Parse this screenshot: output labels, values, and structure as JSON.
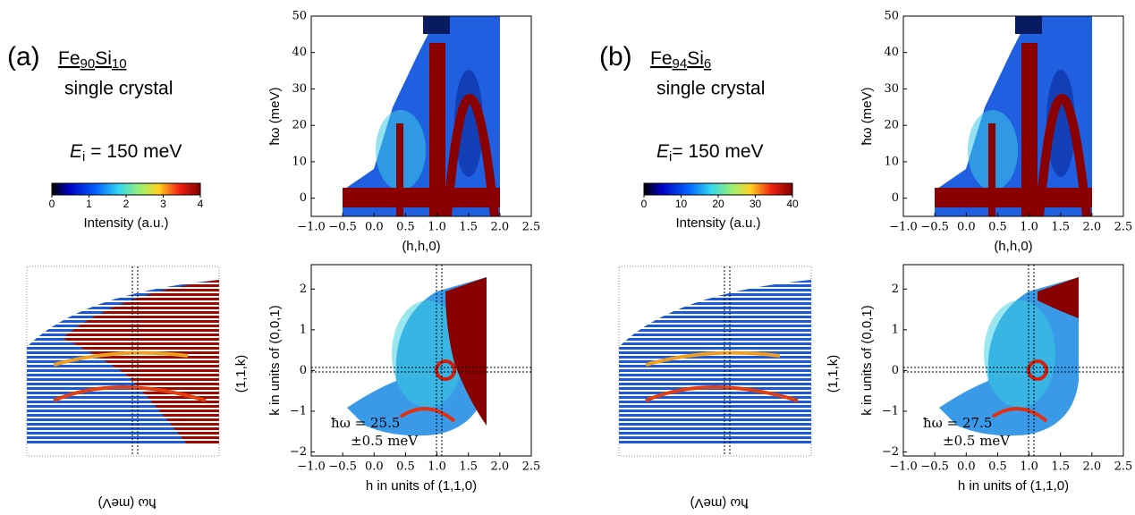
{
  "panels": [
    {
      "label": "(a)",
      "formula": {
        "el1": "Fe",
        "n1": "90",
        "el2": "Si",
        "n2": "10"
      },
      "sample": "single crystal",
      "energy": {
        "symbol": "E",
        "sub": "i",
        "rest": " = 150 meV"
      },
      "colorbar": {
        "lim": [
          0,
          4
        ],
        "ticks": [
          0,
          1,
          2,
          3,
          4
        ],
        "label": "Intensity (a.u.)"
      },
      "dispersion": {
        "ylabel": "ħω (meV)",
        "xlabel": "(h,h,0)",
        "xlim": [
          -1,
          2.5
        ],
        "xticks": [
          {
            "value": -1,
            "label": "−1.0"
          },
          {
            "value": -0.5,
            "label": "−0.5"
          },
          {
            "value": 0,
            "label": "0.0"
          },
          0.5,
          {
            "value": 1,
            "label": "1.0"
          },
          1.5,
          {
            "value": 2,
            "label": "2.0"
          },
          2.5
        ],
        "ylim": [
          -5,
          50
        ],
        "yticks": [
          0,
          10,
          20,
          30,
          40,
          50
        ]
      },
      "slice": {
        "ylabel": "k in units of (0,0,1)",
        "xlabel": "h in units of (1,1,0)",
        "xlim": [
          -1,
          2.5
        ],
        "xticks": [
          {
            "value": -1,
            "label": "−1.0"
          },
          {
            "value": -0.5,
            "label": "−0.5"
          },
          {
            "value": 0,
            "label": "0.0"
          },
          0.5,
          {
            "value": 1,
            "label": "1.0"
          },
          1.5,
          {
            "value": 2,
            "label": "2.0"
          },
          2.5
        ],
        "ylim": [
          -2.1,
          2.6
        ],
        "yticks": [
          {
            "value": -2,
            "label": "−2"
          },
          {
            "value": -1,
            "label": "−1"
          },
          0,
          1,
          2
        ],
        "annotation": [
          "ħω = 25.5",
          "±0.5 meV"
        ]
      },
      "cut": {
        "klabel": "(1,1,k)",
        "elabel": "ħω (meV)"
      }
    },
    {
      "label": "(b)",
      "formula": {
        "el1": "Fe",
        "n1": "94",
        "el2": "Si",
        "n2": "6"
      },
      "sample": "single crystal",
      "energy": {
        "symbol": "E",
        "sub": "i",
        "rest": "= 150 meV"
      },
      "colorbar": {
        "lim": [
          0,
          40
        ],
        "ticks": [
          0,
          10,
          20,
          30,
          40
        ],
        "label": "Intensity (a.u.)"
      },
      "dispersion": {
        "ylabel": "ħω (meV)",
        "xlabel": "(h,h,0)",
        "xlim": [
          -1,
          2.5
        ],
        "xticks": [
          {
            "value": -1,
            "label": "−1.0"
          },
          {
            "value": -0.5,
            "label": "−0.5"
          },
          {
            "value": 0,
            "label": "0.0"
          },
          0.5,
          {
            "value": 1,
            "label": "1.0"
          },
          1.5,
          {
            "value": 2,
            "label": "2.0"
          },
          2.5
        ],
        "ylim": [
          -5,
          50
        ],
        "yticks": [
          0,
          10,
          20,
          30,
          40,
          50
        ]
      },
      "slice": {
        "ylabel": "k in units of (0,0,1)",
        "xlabel": "h in units of (1,1,0)",
        "xlim": [
          -1,
          2.5
        ],
        "xticks": [
          {
            "value": -1,
            "label": "−1.0"
          },
          {
            "value": -0.5,
            "label": "−0.5"
          },
          {
            "value": 0,
            "label": "0.0"
          },
          0.5,
          {
            "value": 1,
            "label": "1.0"
          },
          1.5,
          {
            "value": 2,
            "label": "2.0"
          },
          2.5
        ],
        "ylim": [
          -2.1,
          2.6
        ],
        "yticks": [
          {
            "value": -2,
            "label": "−2"
          },
          {
            "value": -1,
            "label": "−1"
          },
          0,
          1,
          2
        ],
        "annotation": [
          "ħω = 27.5",
          "±0.5 meV"
        ]
      },
      "cut": {
        "klabel": "(1,1,k)",
        "elabel": "ħω (meV)"
      }
    }
  ]
}
